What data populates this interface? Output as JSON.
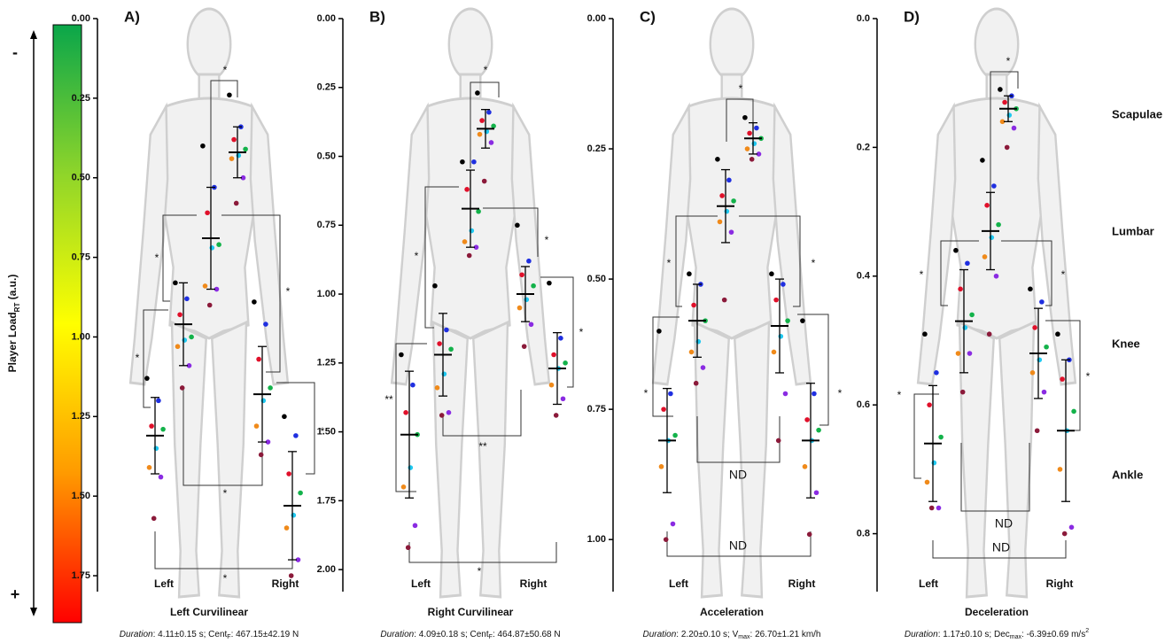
{
  "y_label": [
    "Player Load",
    "RT",
    " (a.u.)"
  ],
  "colorbar": {
    "top_label": "-",
    "bottom_label": "+",
    "colors": [
      "#0aa64a",
      "#8fd52a",
      "#ffff00",
      "#ff9a00",
      "#ff0000"
    ]
  },
  "row_labels": [
    "Scapulae",
    "Lumbar",
    "Knee",
    "Ankle"
  ],
  "point_colors": [
    "#000000",
    "#1f2fe0",
    "#e0102a",
    "#13b24a",
    "#1ec8f0",
    "#f08a1a",
    "#8a2be2",
    "#8b1a3a"
  ],
  "mean_color": "#000000",
  "chart_data": [
    {
      "type": "dot_plot",
      "panel_label": "A)",
      "title": "Left Curvilinear",
      "footnote": [
        {
          "text": "Duration",
          "italic": true
        },
        {
          "text": ": 4.11±0.15 s; Cent"
        },
        {
          "text": "F",
          "sub": true
        },
        {
          "text": ": 467.15±42.19 N"
        }
      ],
      "x_labels": [
        "Left",
        "Right"
      ],
      "ylim": [
        0,
        1.8
      ],
      "y_inverted": true,
      "yticks": [
        {
          "value": 0,
          "label": "0.00"
        },
        {
          "value": 0.25,
          "label": "0.25"
        },
        {
          "value": 0.5,
          "label": "0.50"
        },
        {
          "value": 0.75,
          "label": "0.75"
        },
        {
          "value": 1,
          "label": "1.00"
        },
        {
          "value": 1.25,
          "label": "1.25"
        },
        {
          "value": 1.5,
          "label": "1.50"
        },
        {
          "value": 1.75,
          "label": "1.75"
        }
      ],
      "groups": [
        {
          "values": [
            1.13,
            1.2,
            1.28,
            1.29,
            1.35,
            1.41,
            1.44,
            1.57
          ],
          "mean": 1.31,
          "sd": 0.12
        },
        {
          "values": [
            0.83,
            0.88,
            0.93,
            1.0,
            1.01,
            1.03,
            1.09,
            1.16
          ],
          "mean": 0.96,
          "sd": 0.13
        },
        {
          "values": [
            0.4,
            0.53,
            0.61,
            0.71,
            0.72,
            0.84,
            0.85,
            0.9
          ],
          "mean": 0.69,
          "sd": 0.16
        },
        {
          "values": [
            0.24,
            0.34,
            0.38,
            0.41,
            0.43,
            0.44,
            0.5,
            0.58
          ],
          "mean": 0.42,
          "sd": 0.08
        },
        {
          "values": [
            0.89,
            0.96,
            1.07,
            1.16,
            1.2,
            1.28,
            1.33,
            1.37
          ],
          "mean": 1.18,
          "sd": 0.15
        },
        {
          "values": [
            1.25,
            1.31,
            1.43,
            1.49,
            1.56,
            1.6,
            1.7,
            1.75
          ],
          "mean": 1.53,
          "sd": 0.17
        }
      ],
      "comparisons": [
        "*",
        "*",
        "*",
        "*",
        "*",
        "*",
        "*"
      ]
    },
    {
      "type": "dot_plot",
      "panel_label": "B)",
      "title": "Right Curvilinear",
      "footnote": [
        {
          "text": "Duration",
          "italic": true
        },
        {
          "text": ": 4.09±0.18 s; Cent"
        },
        {
          "text": "F",
          "sub": true
        },
        {
          "text": ": 464.87±50.68 N"
        }
      ],
      "x_labels": [
        "Left",
        "Right"
      ],
      "ylim": [
        0,
        2.08
      ],
      "y_inverted": true,
      "yticks": [
        {
          "value": 0,
          "label": "0.00"
        },
        {
          "value": 0.25,
          "label": "0.25"
        },
        {
          "value": 0.5,
          "label": "0.50"
        },
        {
          "value": 0.75,
          "label": "0.75"
        },
        {
          "value": 1,
          "label": "1.00"
        },
        {
          "value": 1.25,
          "label": "1.25"
        },
        {
          "value": 1.5,
          "label": "1.50"
        },
        {
          "value": 1.75,
          "label": "1.75"
        },
        {
          "value": 2,
          "label": "2.00"
        }
      ],
      "groups": [
        {
          "values": [
            1.22,
            1.33,
            1.43,
            1.51,
            1.63,
            1.7,
            1.84,
            1.92
          ],
          "mean": 1.51,
          "sd": 0.23
        },
        {
          "values": [
            0.97,
            1.13,
            1.18,
            1.2,
            1.29,
            1.34,
            1.43,
            1.44
          ],
          "mean": 1.22,
          "sd": 0.15
        },
        {
          "values": [
            0.52,
            0.52,
            0.62,
            0.7,
            0.77,
            0.81,
            0.83,
            0.86
          ],
          "mean": 0.69,
          "sd": 0.14
        },
        {
          "values": [
            0.27,
            0.34,
            0.37,
            0.39,
            0.41,
            0.42,
            0.45,
            0.59
          ],
          "mean": 0.4,
          "sd": 0.07
        },
        {
          "values": [
            0.75,
            0.88,
            0.93,
            0.97,
            1.02,
            1.05,
            1.11,
            1.19
          ],
          "mean": 1.0,
          "sd": 0.1
        },
        {
          "values": [
            0.96,
            1.16,
            1.22,
            1.25,
            1.27,
            1.33,
            1.38,
            1.44
          ],
          "mean": 1.27,
          "sd": 0.13
        }
      ],
      "comparisons": [
        "*",
        "*",
        "*",
        "*",
        "**",
        "**",
        "*"
      ]
    },
    {
      "type": "dot_plot",
      "panel_label": "C)",
      "title": "Acceleration",
      "footnote": [
        {
          "text": "Duration",
          "italic": true
        },
        {
          "text": ": 2.20±0.10 s; V"
        },
        {
          "text": "max",
          "sub": true
        },
        {
          "text": ": 26.70±1.21 km/h"
        }
      ],
      "x_labels": [
        "Left",
        "Right"
      ],
      "ylim": [
        0,
        1.1
      ],
      "y_inverted": true,
      "yticks": [
        {
          "value": 0,
          "label": "0.00"
        },
        {
          "value": 0.25,
          "label": "0.25"
        },
        {
          "value": 0.5,
          "label": "0.50"
        },
        {
          "value": 0.75,
          "label": "0.75"
        },
        {
          "value": 1,
          "label": "1.00"
        }
      ],
      "groups": [
        {
          "values": [
            0.6,
            0.72,
            0.75,
            0.8,
            0.81,
            0.86,
            0.97,
            1.0
          ],
          "mean": 0.81,
          "sd": 0.1
        },
        {
          "values": [
            0.49,
            0.51,
            0.55,
            0.58,
            0.62,
            0.64,
            0.67,
            0.7
          ],
          "mean": 0.58,
          "sd": 0.07
        },
        {
          "values": [
            0.27,
            0.31,
            0.34,
            0.35,
            0.37,
            0.39,
            0.41,
            0.54
          ],
          "mean": 0.36,
          "sd": 0.07
        },
        {
          "values": [
            0.19,
            0.21,
            0.22,
            0.23,
            0.24,
            0.25,
            0.26,
            0.27
          ],
          "mean": 0.23,
          "sd": 0.03
        },
        {
          "values": [
            0.49,
            0.51,
            0.54,
            0.58,
            0.61,
            0.64,
            0.72,
            0.81
          ],
          "mean": 0.59,
          "sd": 0.09
        },
        {
          "values": [
            0.58,
            0.72,
            0.77,
            0.79,
            0.81,
            0.86,
            0.91,
            0.99
          ],
          "mean": 0.81,
          "sd": 0.11
        }
      ],
      "comparisons": [
        "*",
        "*",
        "*",
        "*",
        "*",
        "ND",
        "ND"
      ]
    },
    {
      "type": "dot_plot",
      "panel_label": "D)",
      "title": "Deceleration",
      "footnote": [
        {
          "text": "Duration",
          "italic": true
        },
        {
          "text": ": 1.17±0.10 s; Dec"
        },
        {
          "text": "max",
          "sub": true
        },
        {
          "text": ": -6.39±0.69 m/s"
        },
        {
          "text": "2",
          "sup": true
        }
      ],
      "x_labels": [
        "Left",
        "Right"
      ],
      "ylim": [
        0,
        0.89
      ],
      "y_inverted": true,
      "yticks": [
        {
          "value": 0,
          "label": "0.0"
        },
        {
          "value": 0.2,
          "label": "0.2"
        },
        {
          "value": 0.4,
          "label": "0.4"
        },
        {
          "value": 0.6,
          "label": "0.6"
        },
        {
          "value": 0.8,
          "label": "0.8"
        }
      ],
      "groups": [
        {
          "values": [
            0.49,
            0.55,
            0.6,
            0.65,
            0.69,
            0.72,
            0.76,
            0.76
          ],
          "mean": 0.66,
          "sd": 0.09
        },
        {
          "values": [
            0.36,
            0.38,
            0.42,
            0.46,
            0.48,
            0.52,
            0.52,
            0.58
          ],
          "mean": 0.47,
          "sd": 0.08
        },
        {
          "values": [
            0.22,
            0.26,
            0.29,
            0.32,
            0.34,
            0.37,
            0.4,
            0.49
          ],
          "mean": 0.33,
          "sd": 0.06
        },
        {
          "values": [
            0.11,
            0.12,
            0.13,
            0.14,
            0.15,
            0.16,
            0.17,
            0.2
          ],
          "mean": 0.14,
          "sd": 0.02
        },
        {
          "values": [
            0.42,
            0.44,
            0.48,
            0.51,
            0.53,
            0.55,
            0.58,
            0.64
          ],
          "mean": 0.52,
          "sd": 0.07
        },
        {
          "values": [
            0.49,
            0.53,
            0.56,
            0.61,
            0.64,
            0.7,
            0.79,
            0.8
          ],
          "mean": 0.64,
          "sd": 0.11
        }
      ],
      "comparisons": [
        "*",
        "*",
        "*",
        "*",
        "*",
        "ND",
        "ND"
      ]
    }
  ]
}
